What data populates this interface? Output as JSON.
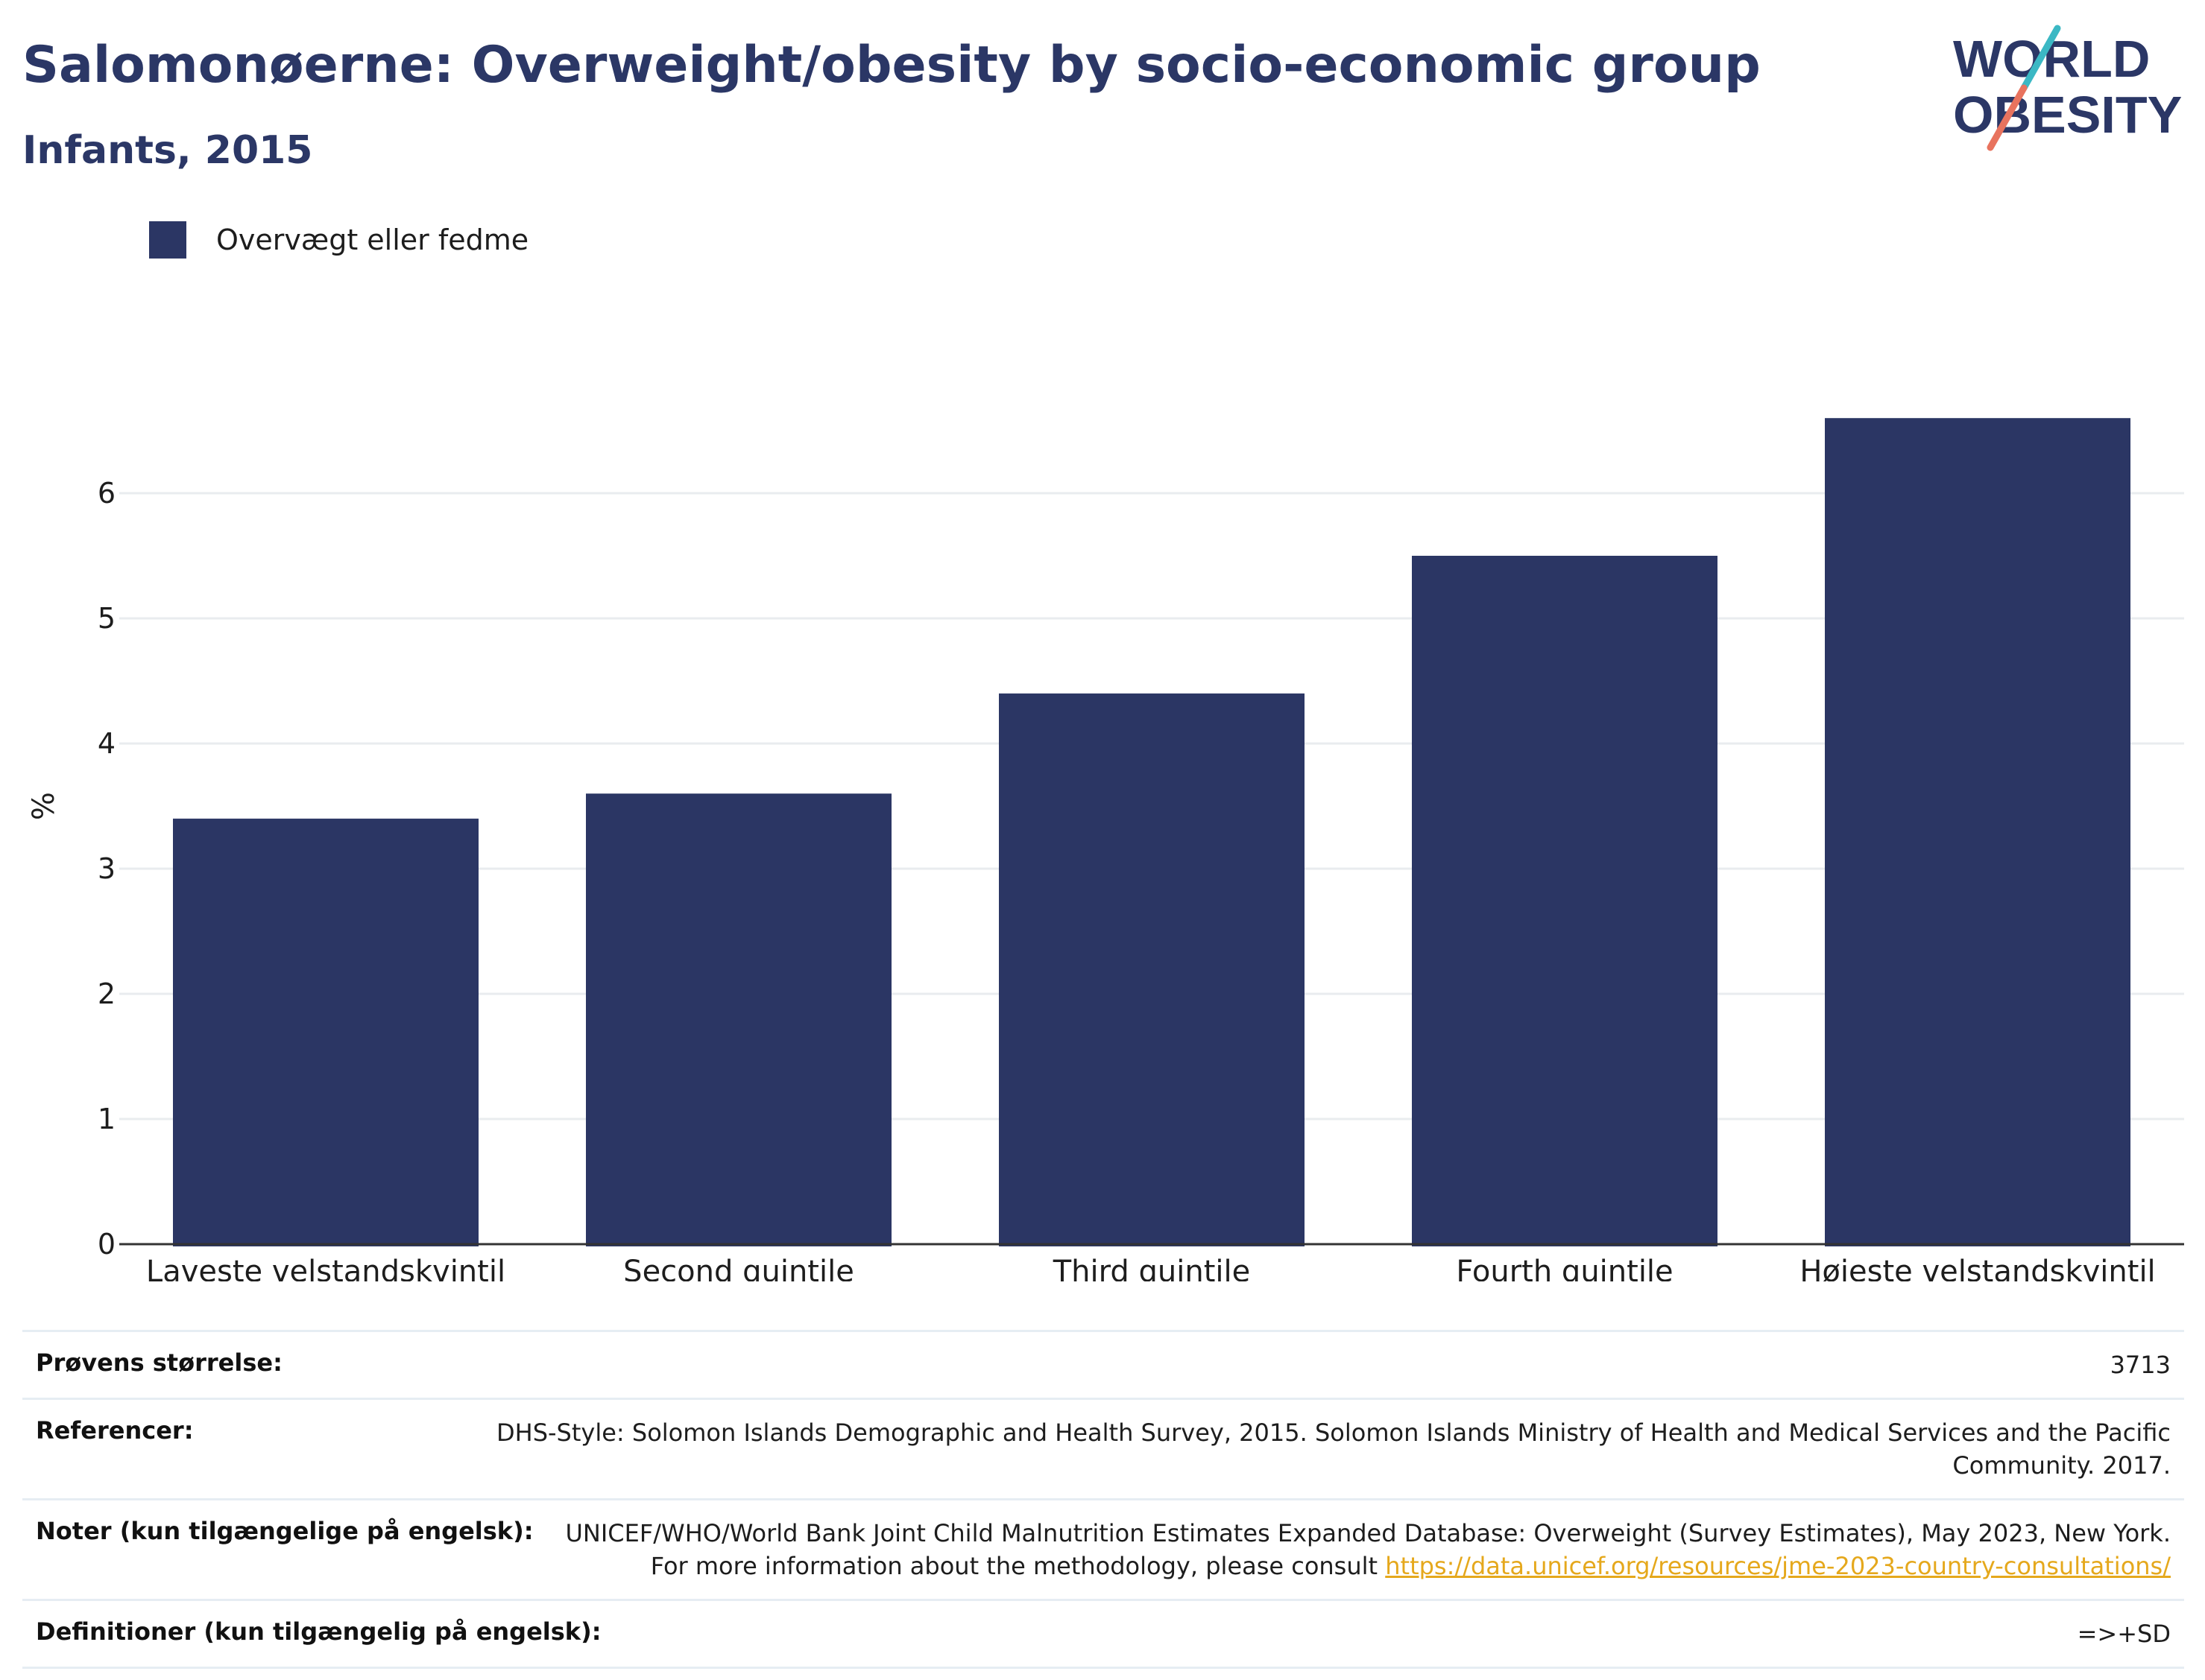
{
  "header": {
    "title": "Salomonøerne: Overweight/obesity by socio-economic group",
    "subtitle": "Infants, 2015"
  },
  "logo": {
    "line1": "WORLD",
    "line2": "OBESITY",
    "colors": {
      "text": "#2b3766",
      "slash_top": "#3bb8c4",
      "slash_bottom": "#e8735e"
    }
  },
  "colors": {
    "bar": "#2b3664",
    "grid": "#e9ecef",
    "axis": "#333333",
    "link": "#e5a81c"
  },
  "chart_data": {
    "type": "bar",
    "title": "Salomonøerne: Overweight/obesity by socio-economic group",
    "subtitle": "Infants, 2015",
    "categories": [
      "Laveste velstandskvintil",
      "Second quintile",
      "Third quintile",
      "Fourth quintile",
      "Højeste velstandskvintil"
    ],
    "series": [
      {
        "name": "Overvægt eller fedme",
        "values": [
          3.4,
          3.6,
          4.4,
          5.5,
          6.6
        ]
      }
    ],
    "xlabel": "",
    "ylabel": "%",
    "ylim": [
      0,
      7
    ],
    "yticks": [
      0,
      1,
      2,
      3,
      4,
      5,
      6
    ],
    "grid": true,
    "legend_position": "top-left"
  },
  "info": {
    "sample_size": {
      "label": "Prøvens størrelse:",
      "value": "3713"
    },
    "references": {
      "label": "Referencer:",
      "value": "DHS-Style: Solomon Islands Demographic and Health Survey, 2015. Solomon Islands Ministry of Health and Medical Services and the Pacific Community. 2017."
    },
    "notes": {
      "label": "Noter (kun tilgængelige på engelsk):",
      "value": "UNICEF/WHO/World Bank Joint Child Malnutrition Estimates Expanded Database: Overweight (Survey Estimates), May 2023, New York. For more information about the methodology, please consult",
      "link": "https://data.unicef.org/resources/jme-2023-country-consultations/"
    },
    "definitions": {
      "label": "Definitioner (kun tilgængelig på engelsk):",
      "value": "=>+SD"
    }
  }
}
